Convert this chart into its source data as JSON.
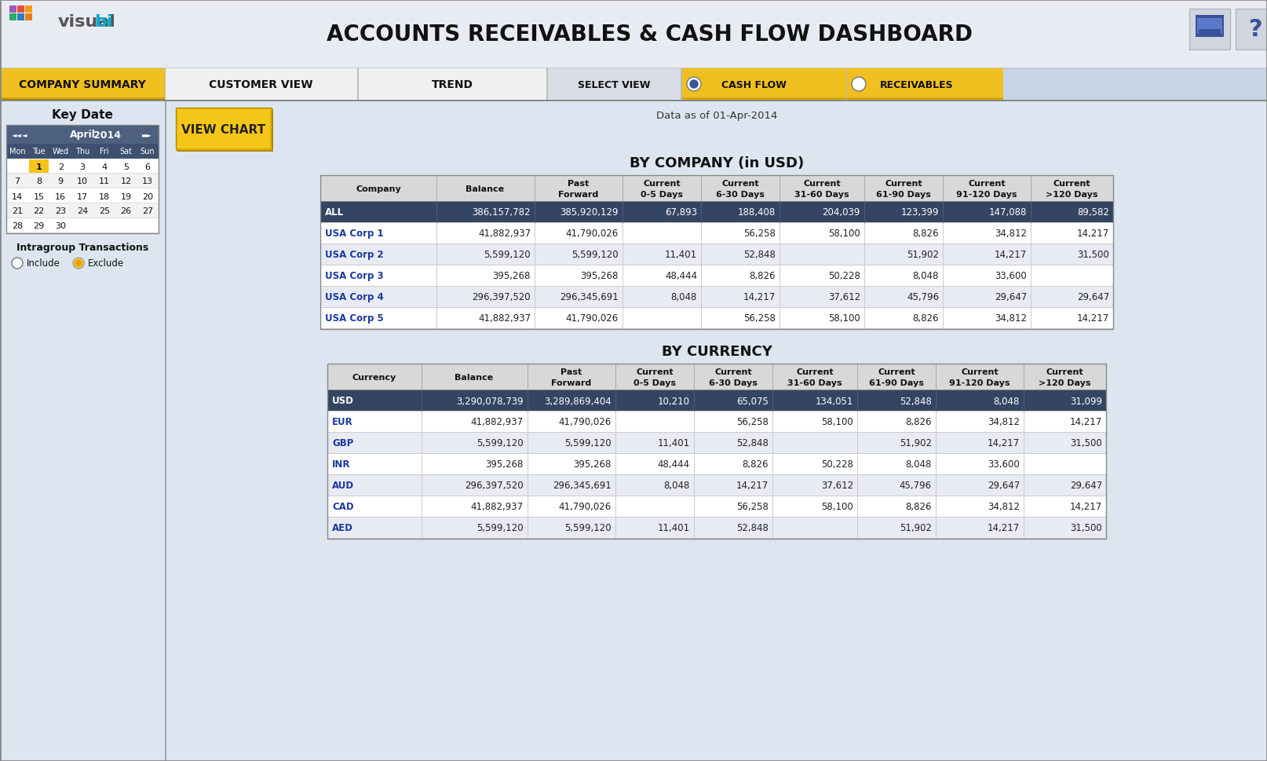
{
  "title": "ACCOUNTS RECEIVABLES & CASH FLOW DASHBOARD",
  "date_label": "Data as of 01-Apr-2014",
  "calendar_month": "April",
  "calendar_year": "2014",
  "calendar_days": [
    "Mon",
    "Tue",
    "Wed",
    "Thu",
    "Fri",
    "Sat",
    "Sun"
  ],
  "calendar_data": [
    [
      "",
      "1",
      "2",
      "3",
      "4",
      "5",
      "6"
    ],
    [
      "7",
      "8",
      "9",
      "10",
      "11",
      "12",
      "13"
    ],
    [
      "14",
      "15",
      "16",
      "17",
      "18",
      "19",
      "20"
    ],
    [
      "21",
      "22",
      "23",
      "24",
      "25",
      "26",
      "27"
    ],
    [
      "28",
      "29",
      "30",
      "",
      "",
      "",
      ""
    ]
  ],
  "by_company_title": "BY COMPANY (in USD)",
  "company_headers": [
    "Company",
    "Balance",
    "Past\nForward",
    "Current\n0-5 Days",
    "Current\n6-30 Days",
    "Current\n31-60 Days",
    "Current\n61-90 Days",
    "Current\n91-120 Days",
    "Current\n>120 Days"
  ],
  "company_rows": [
    [
      "ALL",
      "386,157,782",
      "385,920,129",
      "67,893",
      "188,408",
      "204,039",
      "123,399",
      "147,088",
      "89,582"
    ],
    [
      "USA Corp 1",
      "41,882,937",
      "41,790,026",
      "",
      "56,258",
      "58,100",
      "8,826",
      "34,812",
      "14,217"
    ],
    [
      "USA Corp 2",
      "5,599,120",
      "5,599,120",
      "11,401",
      "52,848",
      "",
      "51,902",
      "14,217",
      "31,500"
    ],
    [
      "USA Corp 3",
      "395,268",
      "395,268",
      "48,444",
      "8,826",
      "50,228",
      "8,048",
      "33,600",
      ""
    ],
    [
      "USA Corp 4",
      "296,397,520",
      "296,345,691",
      "8,048",
      "14,217",
      "37,612",
      "45,796",
      "29,647",
      "29,647"
    ],
    [
      "USA Corp 5",
      "41,882,937",
      "41,790,026",
      "",
      "56,258",
      "58,100",
      "8,826",
      "34,812",
      "14,217"
    ]
  ],
  "by_currency_title": "BY CURRENCY",
  "currency_headers": [
    "Currency",
    "Balance",
    "Past\nForward",
    "Current\n0-5 Days",
    "Current\n6-30 Days",
    "Current\n31-60 Days",
    "Current\n61-90 Days",
    "Current\n91-120 Days",
    "Current\n>120 Days"
  ],
  "currency_rows": [
    [
      "USD",
      "3,290,078,739",
      "3,289,869,404",
      "10,210",
      "65,075",
      "134,051",
      "52,848",
      "8,048",
      "31,099"
    ],
    [
      "EUR",
      "41,882,937",
      "41,790,026",
      "",
      "56,258",
      "58,100",
      "8,826",
      "34,812",
      "14,217"
    ],
    [
      "GBP",
      "5,599,120",
      "5,599,120",
      "11,401",
      "52,848",
      "",
      "51,902",
      "14,217",
      "31,500"
    ],
    [
      "INR",
      "395,268",
      "395,268",
      "48,444",
      "8,826",
      "50,228",
      "8,048",
      "33,600",
      ""
    ],
    [
      "AUD",
      "296,397,520",
      "296,345,691",
      "8,048",
      "14,217",
      "37,612",
      "45,796",
      "29,647",
      "29,647"
    ],
    [
      "CAD",
      "41,882,937",
      "41,790,026",
      "",
      "56,258",
      "58,100",
      "8,826",
      "34,812",
      "14,217"
    ],
    [
      "AED",
      "5,599,120",
      "5,599,120",
      "11,401",
      "52,848",
      "",
      "51,902",
      "14,217",
      "31,500"
    ]
  ],
  "nav_widths": [
    210,
    240,
    240,
    165,
    200,
    180
  ],
  "col_widths_company": [
    148,
    125,
    112,
    100,
    100,
    108,
    100,
    112,
    105
  ],
  "col_widths_currency": [
    120,
    135,
    112,
    100,
    100,
    108,
    100,
    112,
    105
  ],
  "header_bg": "#e8ecf0",
  "nav_yellow": "#f0c020",
  "nav_yellow_dark": "#d4a800",
  "nav_gray": "#f0f0f0",
  "all_row_bg": "#344563",
  "all_row_fg": "#ffffff",
  "usd_row_bg": "#344563",
  "usd_row_fg": "#ffffff",
  "row_alt0": "#ffffff",
  "row_alt1": "#e8eaf4",
  "name_blue": "#1a3a9e",
  "tbl_hdr_bg": "#d8d8d8",
  "tbl_border": "#999999",
  "left_panel_bg": "#dde6f0",
  "right_panel_bg": "#dde6f0",
  "main_bg": "#c5d5e5",
  "top_bg": "#e8ecf2"
}
